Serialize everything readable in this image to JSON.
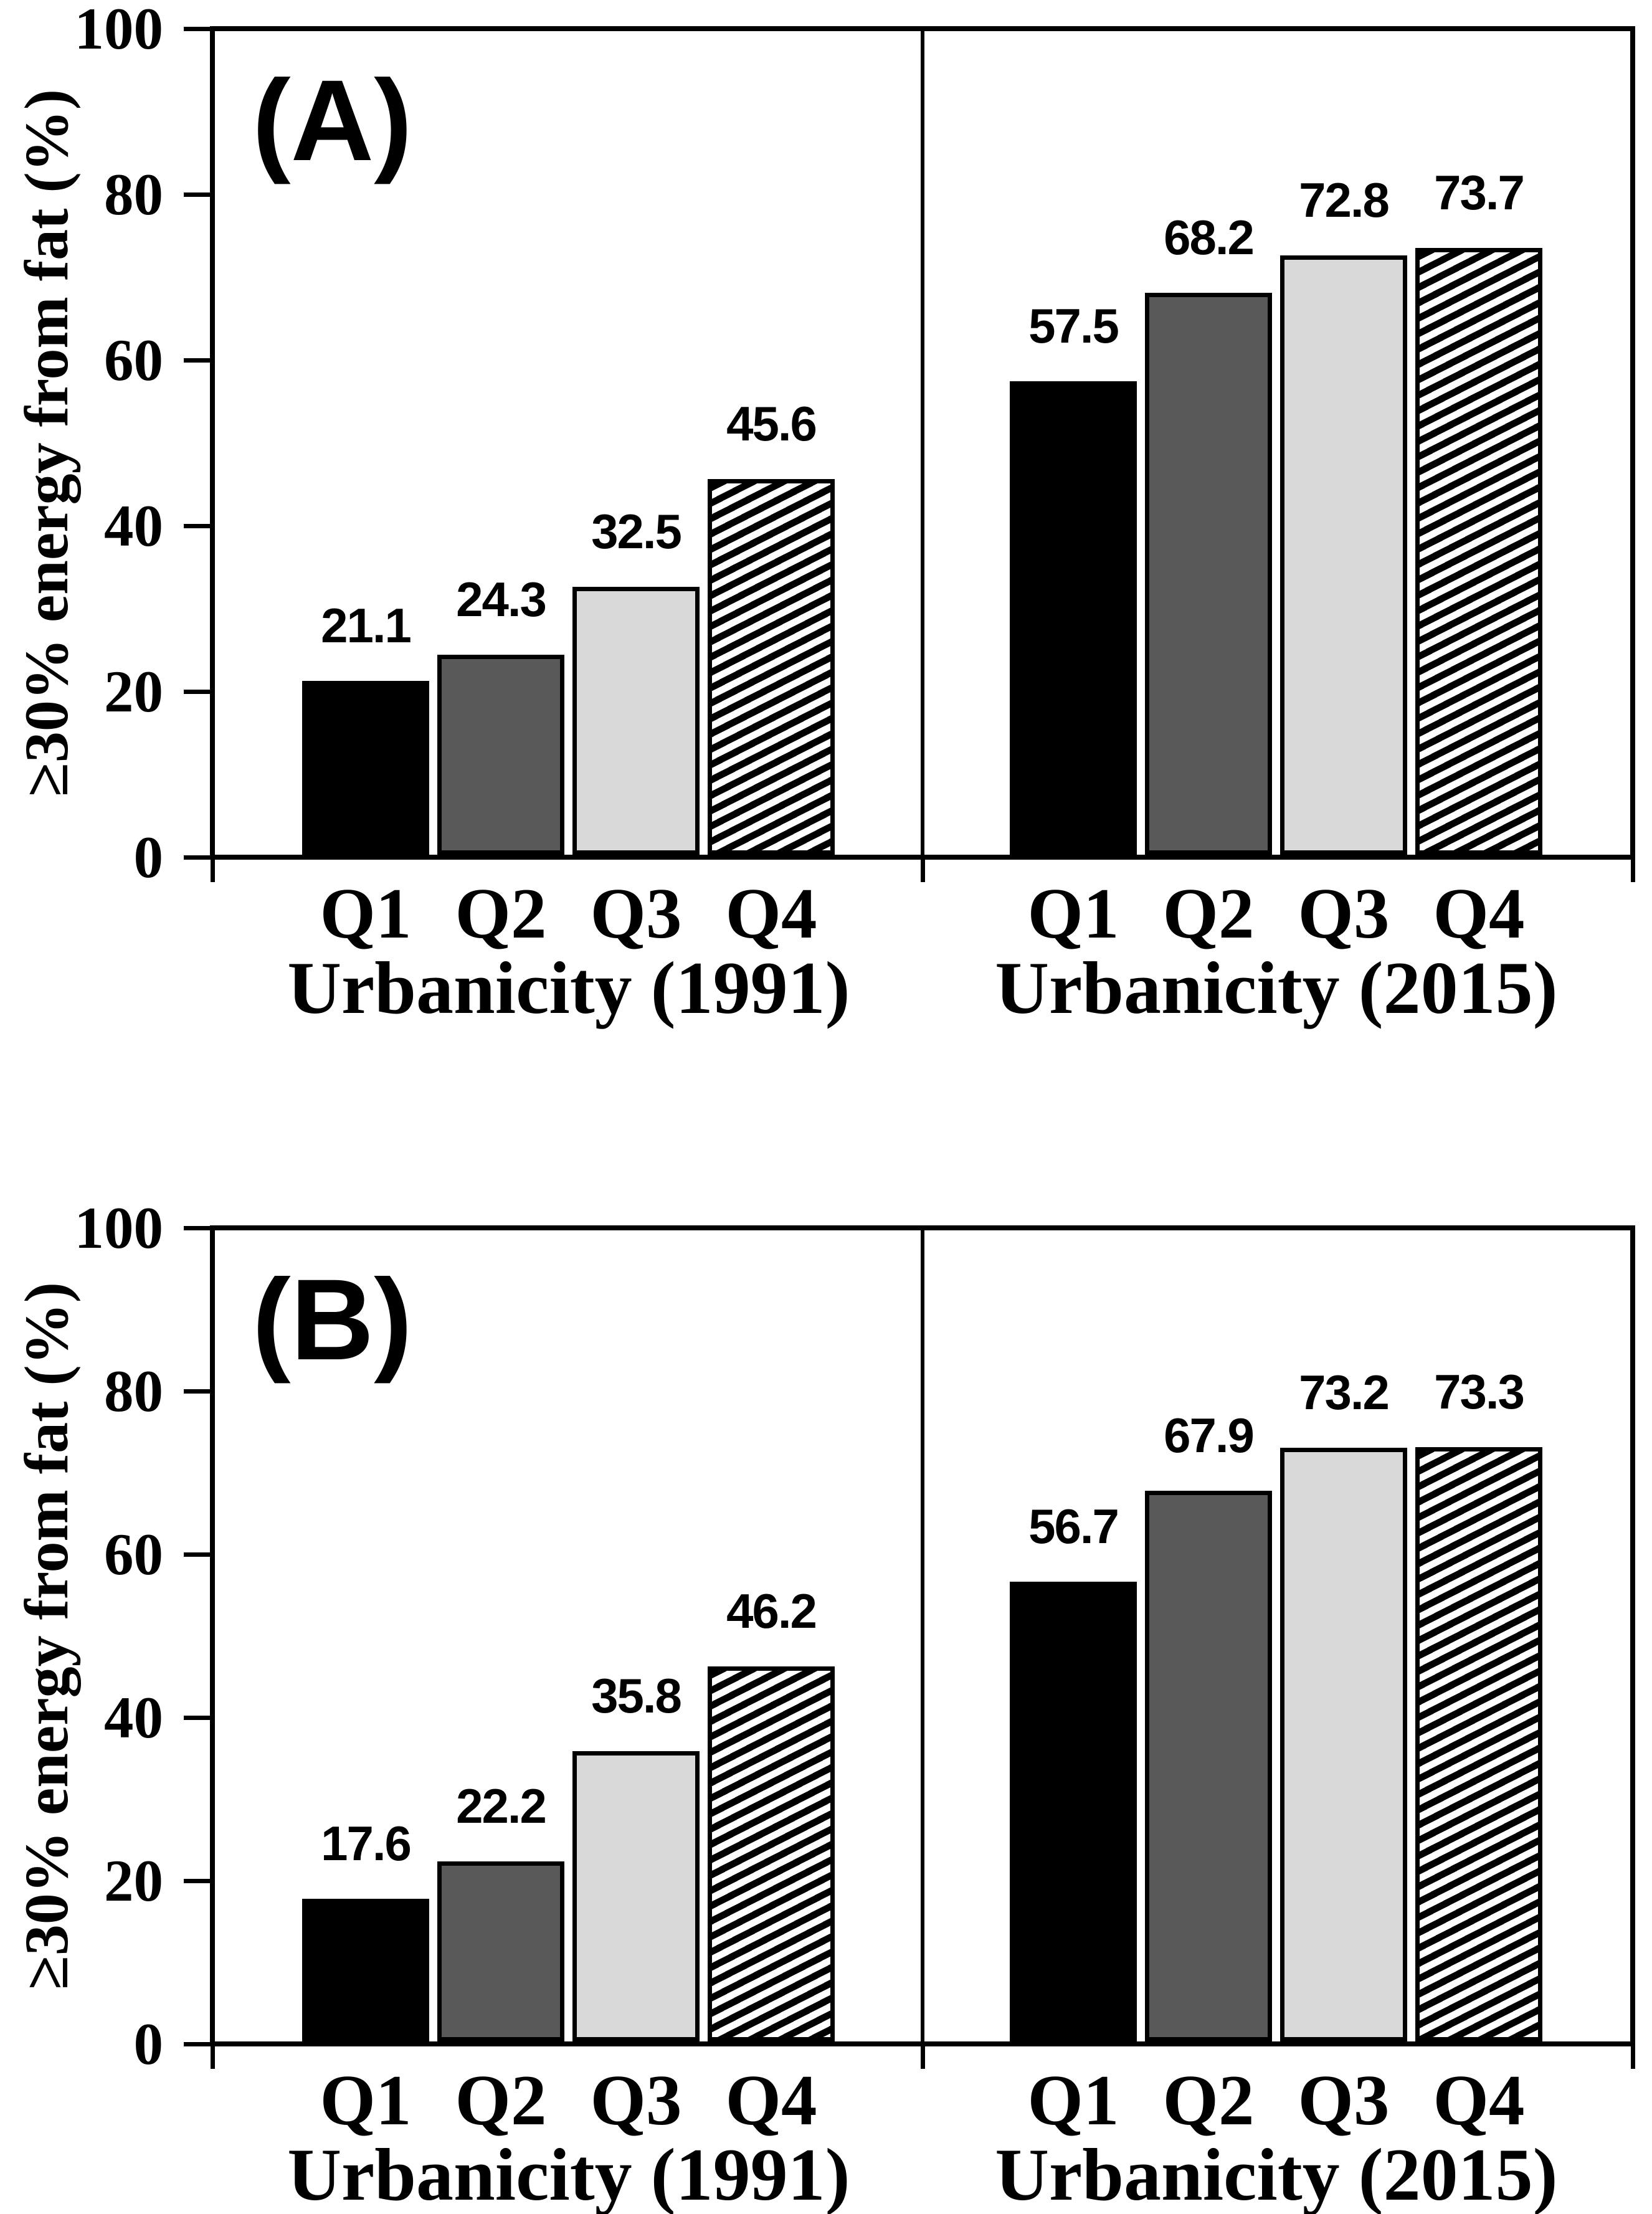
{
  "chart_data": [
    {
      "type": "bar",
      "panel_label": "(A)",
      "ylabel": "≥30% energy from fat (%)",
      "ylim": [
        0,
        100
      ],
      "y_ticks": [
        0,
        20,
        40,
        60,
        80,
        100
      ],
      "grid": false,
      "legend": "none",
      "data_labels_shown": true,
      "bar_fills": [
        "#000000",
        "#595959",
        "#d9d9d9",
        "diagonal-hatch-black-white"
      ],
      "groups": [
        {
          "xlabel": "Urbanicity (1991)",
          "categories": [
            "Q1",
            "Q2",
            "Q3",
            "Q4"
          ],
          "values": [
            21.1,
            24.3,
            32.5,
            45.6
          ],
          "value_labels": [
            "21.1",
            "24.3",
            "32.5",
            "45.6"
          ]
        },
        {
          "xlabel": "Urbanicity (2015)",
          "categories": [
            "Q1",
            "Q2",
            "Q3",
            "Q4"
          ],
          "values": [
            57.5,
            68.2,
            72.8,
            73.7
          ],
          "value_labels": [
            "57.5",
            "68.2",
            "72.8",
            "73.7"
          ]
        }
      ]
    },
    {
      "type": "bar",
      "panel_label": "(B)",
      "ylabel": "≥30% energy from fat (%)",
      "ylim": [
        0,
        100
      ],
      "y_ticks": [
        0,
        20,
        40,
        60,
        80,
        100
      ],
      "grid": false,
      "legend": "none",
      "data_labels_shown": true,
      "bar_fills": [
        "#000000",
        "#595959",
        "#d9d9d9",
        "diagonal-hatch-black-white"
      ],
      "groups": [
        {
          "xlabel": "Urbanicity (1991)",
          "categories": [
            "Q1",
            "Q2",
            "Q3",
            "Q4"
          ],
          "values": [
            17.6,
            22.2,
            35.8,
            46.2
          ],
          "value_labels": [
            "17.6",
            "22.2",
            "35.8",
            "46.2"
          ]
        },
        {
          "xlabel": "Urbanicity (2015)",
          "categories": [
            "Q1",
            "Q2",
            "Q3",
            "Q4"
          ],
          "values": [
            56.7,
            67.9,
            73.2,
            73.3
          ],
          "value_labels": [
            "56.7",
            "67.9",
            "73.2",
            "73.3"
          ]
        }
      ]
    }
  ],
  "colors": {
    "foreground": "#000000",
    "background": "#ffffff",
    "bar_q1": "#000000",
    "bar_q2": "#595959",
    "bar_q3": "#d9d9d9",
    "bar_q4_pattern": "black diagonal stripes on white"
  }
}
